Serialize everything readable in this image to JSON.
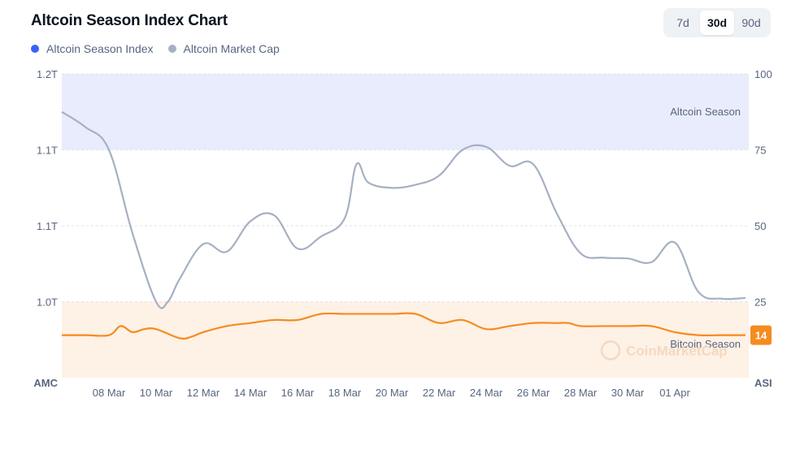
{
  "header": {
    "title": "Altcoin Season Index Chart",
    "tabs": [
      {
        "label": "7d",
        "active": false
      },
      {
        "label": "30d",
        "active": true
      },
      {
        "label": "90d",
        "active": false
      }
    ]
  },
  "colors": {
    "index": "#f68b1e",
    "market_cap": "#a6b0c3",
    "index_legend": "#3861fb",
    "altcoin_zone": "#e8ecfd",
    "bitcoin_zone": "#fef1e6"
  },
  "chart_data": {
    "type": "line",
    "title": "Altcoin Season Index Chart",
    "x_tick_labels": [
      "08 Mar",
      "10 Mar",
      "12 Mar",
      "14 Mar",
      "16 Mar",
      "18 Mar",
      "20 Mar",
      "22 Mar",
      "24 Mar",
      "26 Mar",
      "28 Mar",
      "30 Mar",
      "01 Apr"
    ],
    "x_domain": [
      0,
      29
    ],
    "left_axis": {
      "name": "AMC",
      "tick_labels": [
        "1.2T",
        "1.1T",
        "1.1T",
        "1.0T"
      ],
      "range": [
        0.95,
        1.15
      ]
    },
    "right_axis": {
      "name": "ASI",
      "tick_labels": [
        "100",
        "75",
        "50",
        "25"
      ],
      "range": [
        0,
        100
      ]
    },
    "zones": [
      {
        "label": "Altcoin Season",
        "from": 75,
        "to": 100
      },
      {
        "label": "Bitcoin Season",
        "from": 0,
        "to": 25
      }
    ],
    "watermark": "CoinMarketCap",
    "current_value_label": "14",
    "series": [
      {
        "name": "Altcoin Season Index",
        "axis": "right",
        "x": [
          0,
          1,
          2,
          2.5,
          3,
          3.5,
          4,
          5,
          5.5,
          6,
          7,
          8,
          9,
          10,
          11,
          12,
          13,
          14,
          15,
          16,
          17,
          18,
          19,
          20,
          21,
          21.5,
          22,
          23,
          24,
          25,
          26,
          27,
          28,
          29
        ],
        "values": [
          14,
          14,
          14,
          17,
          15,
          16,
          16,
          13,
          13.5,
          15,
          17,
          18,
          19,
          19,
          21,
          21,
          21,
          21,
          21,
          18,
          19,
          16,
          17,
          18,
          18,
          18,
          17,
          17,
          17,
          17,
          15,
          14,
          14,
          14
        ]
      },
      {
        "name": "Altcoin Market Cap",
        "axis": "left",
        "x": [
          0,
          1,
          2,
          3,
          4,
          4.5,
          5,
          6,
          7,
          8,
          9,
          10,
          11,
          12,
          12.5,
          13,
          14,
          15,
          16,
          17,
          18,
          19,
          20,
          21,
          22,
          23,
          24,
          25,
          26,
          27,
          28,
          29
        ],
        "values": [
          1.125,
          1.115,
          1.1,
          1.045,
          1.0,
          1.0,
          1.015,
          1.038,
          1.033,
          1.053,
          1.057,
          1.035,
          1.043,
          1.055,
          1.0905,
          1.0785,
          1.075,
          1.077,
          1.083,
          1.1,
          1.102,
          1.0895,
          1.0905,
          1.058,
          1.032,
          1.029,
          1.0285,
          1.026,
          1.039,
          1.0065,
          1.002,
          1.0025
        ]
      }
    ]
  }
}
